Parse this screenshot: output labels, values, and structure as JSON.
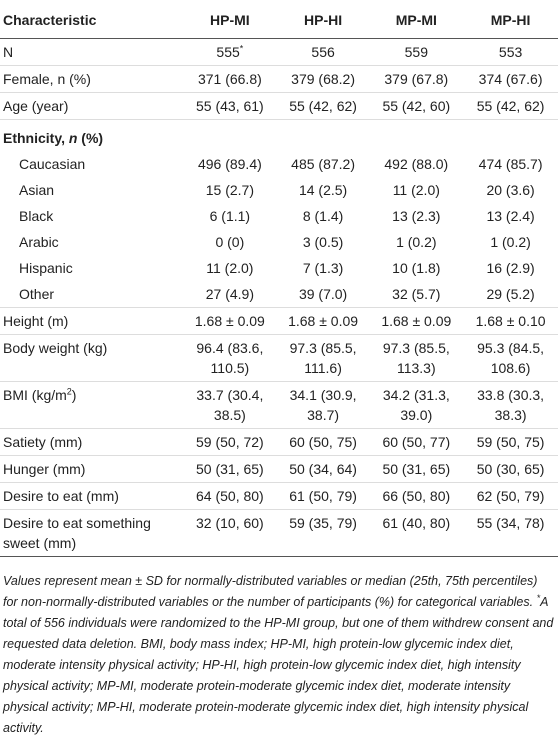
{
  "table": {
    "header": [
      "Characteristic",
      "HP-MI",
      "HP-HI",
      "MP-MI",
      "MP-HI"
    ],
    "rows": [
      {
        "label": "N",
        "cells": [
          [
            "555",
            "*"
          ],
          "556",
          "559",
          "553"
        ]
      },
      {
        "label": "Female, n (%)",
        "cells": [
          "371 (66.8)",
          "379 (68.2)",
          "379 (67.8)",
          "374 (67.6)"
        ]
      },
      {
        "label": "Age (year)",
        "cells": [
          "55 (43, 61)",
          "55 (42, 62)",
          "55 (42, 60)",
          "55 (42, 62)"
        ]
      },
      {
        "label": [
          "Ethnicity, ",
          "n",
          " (%)"
        ]
      },
      {
        "label": "Caucasian",
        "cells": [
          "496 (89.4)",
          "485 (87.2)",
          "492 (88.0)",
          "474 (85.7)"
        ]
      },
      {
        "label": "Asian",
        "cells": [
          "15 (2.7)",
          "14 (2.5)",
          "11 (2.0)",
          "20 (3.6)"
        ]
      },
      {
        "label": "Black",
        "cells": [
          "6 (1.1)",
          "8 (1.4)",
          "13 (2.3)",
          "13 (2.4)"
        ]
      },
      {
        "label": "Arabic",
        "cells": [
          "0 (0)",
          "3 (0.5)",
          "1 (0.2)",
          "1 (0.2)"
        ]
      },
      {
        "label": "Hispanic",
        "cells": [
          "11 (2.0)",
          "7 (1.3)",
          "10 (1.8)",
          "16 (2.9)"
        ]
      },
      {
        "label": "Other",
        "cells": [
          "27 (4.9)",
          "39 (7.0)",
          "32 (5.7)",
          "29 (5.2)"
        ]
      },
      {
        "label": "Height (m)",
        "cells": [
          "1.68 ± 0.09",
          "1.68 ± 0.09",
          "1.68 ± 0.09",
          "1.68 ± 0.10"
        ]
      },
      {
        "label": "Body weight (kg)",
        "cells": [
          "96.4 (83.6, 110.5)",
          "97.3 (85.5, 111.6)",
          "97.3 (85.5, 113.3)",
          "95.3 (84.5, 108.6)"
        ]
      },
      {
        "label": [
          "BMI (kg/m",
          "2",
          ")"
        ],
        "cells": [
          "33.7 (30.4, 38.5)",
          "34.1 (30.9, 38.7)",
          "34.2 (31.3, 39.0)",
          "33.8 (30.3, 38.3)"
        ]
      },
      {
        "label": "Satiety (mm)",
        "cells": [
          "59 (50, 72)",
          "60 (50, 75)",
          "60 (50, 77)",
          "59 (50, 75)"
        ]
      },
      {
        "label": "Hunger (mm)",
        "cells": [
          "50 (31, 65)",
          "50 (34, 64)",
          "50 (31, 65)",
          "50 (30, 65)"
        ]
      },
      {
        "label": "Desire to eat (mm)",
        "cells": [
          "64 (50, 80)",
          "61 (50, 79)",
          "66 (50, 80)",
          "62 (50, 79)"
        ]
      },
      {
        "label": "Desire to eat something sweet (mm)",
        "cells": [
          "32 (10, 60)",
          "59 (35, 79)",
          "61 (40, 80)",
          "55 (34, 78)"
        ]
      }
    ],
    "footnote": [
      "Values represent mean ± SD for normally-distributed variables or median (25th, 75th percentiles) for non-normally-distributed variables or the number of participants (%) for categorical variables. ",
      "*",
      "A total of 556 individuals were randomized to the HP-MI group, but one of them withdrew consent and requested data deletion. BMI, body mass index; HP-MI, high protein-low glycemic index diet, moderate intensity physical activity; HP-HI, high protein-low glycemic index diet, high intensity physical activity; MP-MI, moderate protein-moderate glycemic index diet, moderate intensity physical activity; MP-HI, moderate protein-moderate glycemic index diet, high intensity physical activity."
    ]
  }
}
